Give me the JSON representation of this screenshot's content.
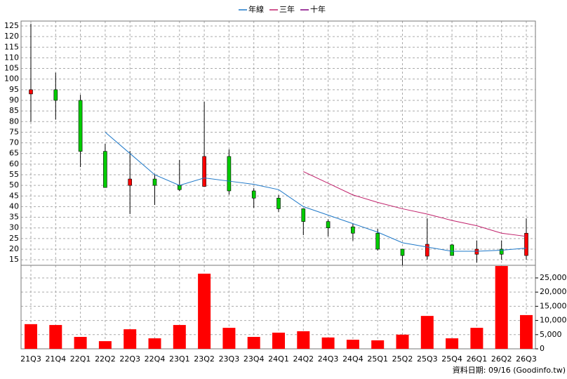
{
  "chart_data": {
    "type": "candlestick",
    "categories": [
      "21Q3",
      "21Q4",
      "22Q1",
      "22Q2",
      "22Q3",
      "22Q4",
      "23Q1",
      "23Q2",
      "23Q3",
      "23Q4",
      "24Q1",
      "24Q2",
      "24Q3",
      "24Q4",
      "25Q1",
      "25Q2",
      "25Q3",
      "25Q4",
      "26Q1",
      "26Q2",
      "26Q3"
    ],
    "open": [
      93,
      95,
      90,
      66,
      50,
      53,
      50,
      49.5,
      63.6,
      47.4,
      44,
      39,
      33,
      30.5,
      27.5,
      20,
      16.7,
      22,
      17.6,
      20,
      17
    ],
    "high": [
      126,
      103,
      92.6,
      69.5,
      66.2,
      55.3,
      62,
      89.3,
      66.9,
      48.7,
      45.4,
      39.1,
      34,
      32,
      29.5,
      20,
      34.5,
      22.5,
      24,
      24,
      34.5
    ],
    "low": [
      80,
      81,
      58.6,
      49,
      36.5,
      40.8,
      47.4,
      49.4,
      45.7,
      39.4,
      37.5,
      26.6,
      26,
      24,
      19.3,
      12.4,
      15,
      17,
      13.7,
      15,
      15
    ],
    "close": [
      95,
      90,
      66,
      49,
      53,
      50,
      48,
      63.6,
      47.4,
      44,
      39,
      33,
      30,
      27.5,
      20,
      17,
      22.3,
      17,
      20,
      17.6,
      27.5
    ],
    "up_color": "#ff0000",
    "down_color": "#00cc00",
    "series": [
      {
        "name": "年線",
        "color": "#1e78c8",
        "values": [
          null,
          null,
          null,
          75,
          65,
          55,
          50,
          53.5,
          52,
          50.5,
          48,
          40,
          36,
          32,
          28,
          23,
          21,
          19,
          19,
          19.5,
          20.5
        ]
      },
      {
        "name": "三年",
        "color": "#c0206a",
        "values": [
          null,
          null,
          null,
          null,
          null,
          null,
          null,
          null,
          null,
          null,
          null,
          56.5,
          51,
          45.5,
          42,
          39,
          36.5,
          33.5,
          31,
          27.5,
          26
        ]
      },
      {
        "name": "十年",
        "color": "#800080",
        "values": [
          null,
          null,
          null,
          null,
          null,
          null,
          null,
          null,
          null,
          null,
          null,
          null,
          null,
          null,
          null,
          null,
          null,
          null,
          null,
          null,
          null
        ]
      }
    ],
    "ylim": [
      12.4,
      127.3
    ],
    "yticks": [
      15,
      20,
      25,
      30,
      35,
      40,
      45,
      50,
      55,
      60,
      65,
      70,
      75,
      80,
      85,
      90,
      95,
      100,
      105,
      110,
      115,
      120,
      125
    ],
    "grid": true,
    "volume": {
      "color": "#ff0000",
      "values": [
        8700,
        8400,
        4200,
        2700,
        6900,
        3700,
        8400,
        26500,
        7400,
        4200,
        5700,
        6200,
        4000,
        3200,
        3000,
        5000,
        11600,
        3700,
        7400,
        29200,
        11900
      ],
      "y2lim": [
        0,
        29450
      ],
      "y2ticks": [
        0,
        {
          "value": 5000,
          "label": "5,000"
        },
        {
          "value": 10000,
          "label": "10,000"
        },
        {
          "value": 15000,
          "label": "15,000"
        },
        {
          "value": 20000,
          "label": "20,000"
        },
        {
          "value": 25000,
          "label": "25,000"
        }
      ]
    }
  },
  "footer": "資料日期: 09/16 (Goodinfo.tw)"
}
